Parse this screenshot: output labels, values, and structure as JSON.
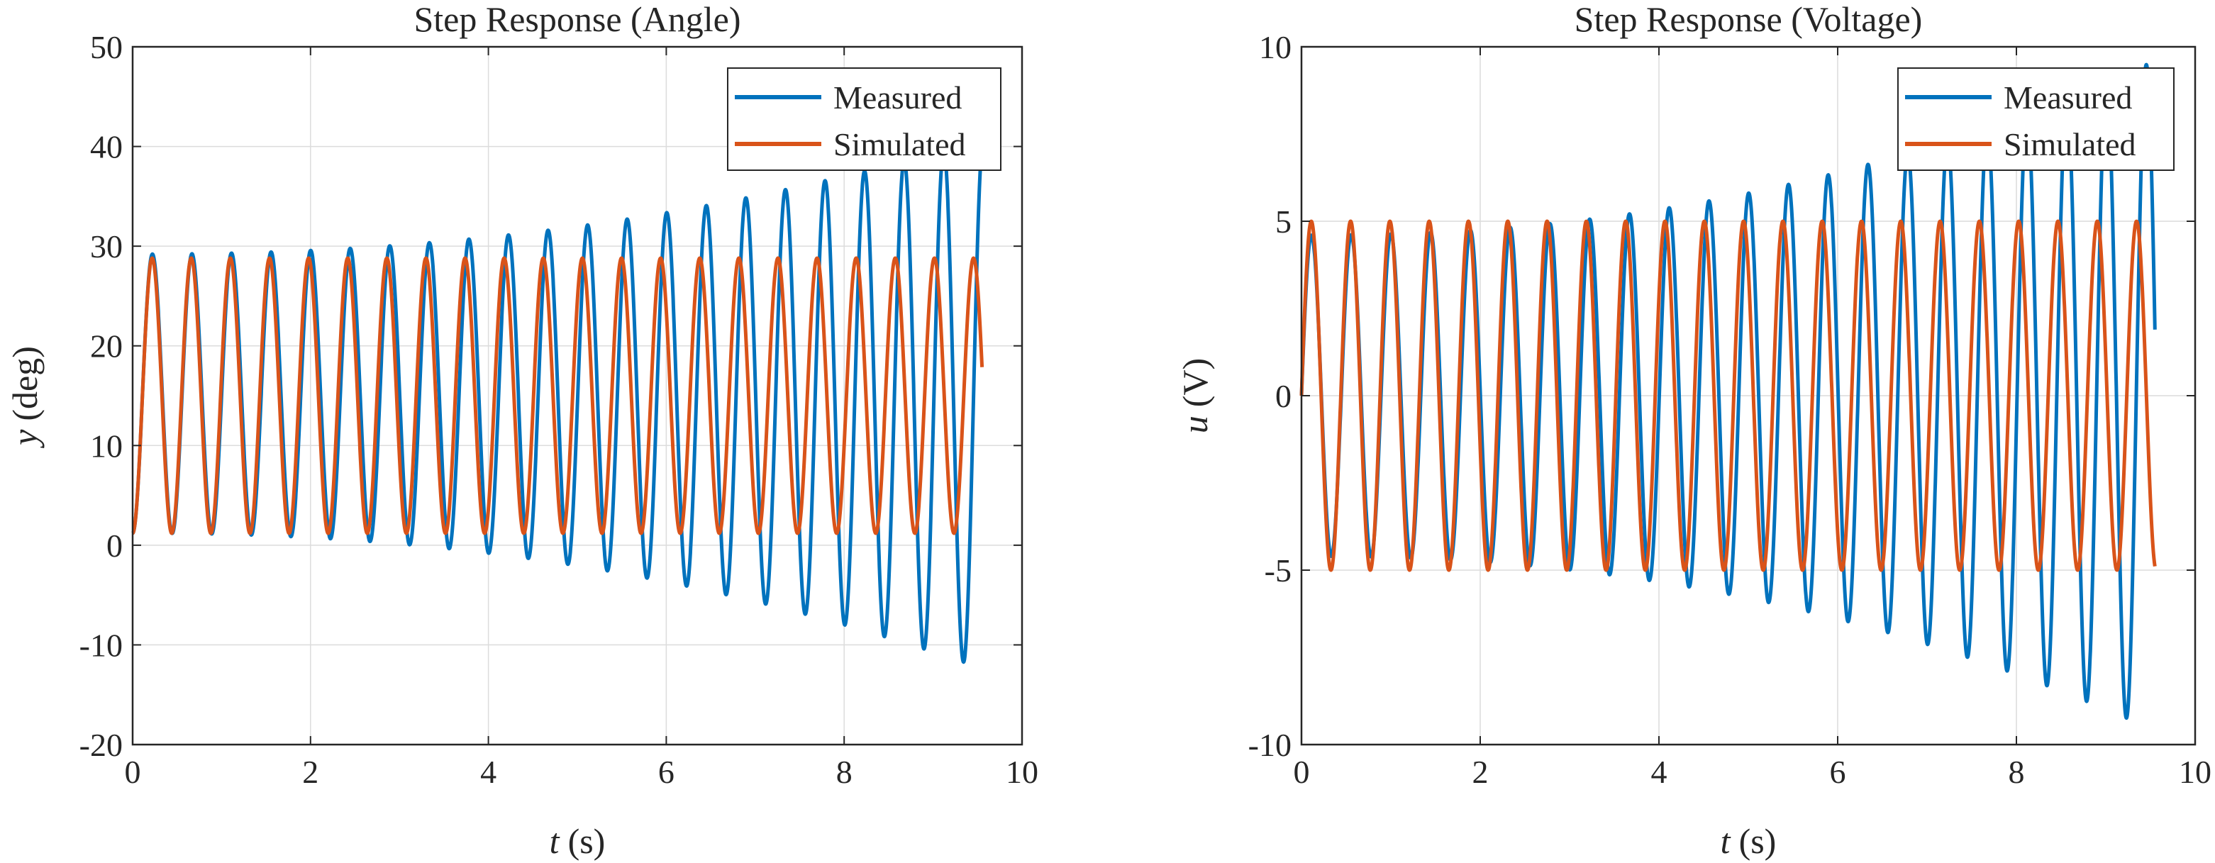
{
  "chart_data": [
    {
      "type": "line",
      "title": "Step Response (Angle)",
      "xlabel_var": "t",
      "xlabel_unit": "(s)",
      "ylabel_var": "y",
      "ylabel_unit": "(deg)",
      "xlim": [
        0,
        10
      ],
      "ylim": [
        -20,
        50
      ],
      "xticks": [
        0,
        2,
        4,
        6,
        8,
        10
      ],
      "yticks": [
        -20,
        -10,
        0,
        10,
        20,
        30,
        40,
        50
      ],
      "xtick_labels": [
        "0",
        "2",
        "4",
        "6",
        "8",
        "10"
      ],
      "ytick_labels": [
        "-20",
        "-10",
        "0",
        "10",
        "20",
        "30",
        "40",
        "50"
      ],
      "grid": true,
      "legend": {
        "placement": "top-right",
        "entries": [
          "Measured",
          "Simulated"
        ]
      },
      "series": [
        {
          "name": "Measured",
          "color": "#0072BD",
          "model": {
            "t_start": 0,
            "t_end": 9.53,
            "start_value": 0,
            "frequency_hz": 2.248,
            "offset_start": 15.2,
            "offset_end": 14.2,
            "amplitude_start": 14.0,
            "amplitude_end": 26.5,
            "growth_exponent": 2.2
          }
        },
        {
          "name": "Simulated",
          "color": "#D95319",
          "model": {
            "t_start": 0,
            "t_end": 9.55,
            "start_value": 0,
            "frequency_hz": 2.274,
            "offset_start": 15.0,
            "offset_end": 15.0,
            "amplitude_start": 13.8,
            "amplitude_end": 13.8,
            "growth_exponent": 1
          }
        }
      ]
    },
    {
      "type": "line",
      "title": "Step Response (Voltage)",
      "xlabel_var": "t",
      "xlabel_unit": "(s)",
      "ylabel_var": "u",
      "ylabel_unit": "(V)",
      "xlim": [
        0,
        10
      ],
      "ylim": [
        -10,
        10
      ],
      "xticks": [
        0,
        2,
        4,
        6,
        8,
        10
      ],
      "yticks": [
        -10,
        -5,
        0,
        5,
        10
      ],
      "xtick_labels": [
        "0",
        "2",
        "4",
        "6",
        "8",
        "10"
      ],
      "ytick_labels": [
        "-10",
        "-5",
        "0",
        "5",
        "10"
      ],
      "grid": true,
      "legend": {
        "placement": "top-right",
        "entries": [
          "Measured",
          "Simulated"
        ]
      },
      "series": [
        {
          "name": "Measured",
          "color": "#0072BD",
          "model": {
            "t_start": 0,
            "t_end": 9.55,
            "start_value": 0,
            "frequency_hz": 2.248,
            "offset_start": 0,
            "offset_end": 0,
            "amplitude_start": 4.6,
            "amplitude_end": 9.6,
            "growth_exponent": 2.2,
            "clip": [
              -10,
              10
            ]
          }
        },
        {
          "name": "Simulated",
          "color": "#D95319",
          "model": {
            "t_start": 0,
            "t_end": 9.55,
            "start_value": 0,
            "frequency_hz": 2.274,
            "offset_start": 0,
            "offset_end": 0,
            "amplitude_start": 5.0,
            "amplitude_end": 5.0,
            "growth_exponent": 1
          }
        }
      ]
    }
  ]
}
